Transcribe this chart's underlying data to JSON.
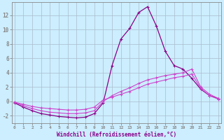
{
  "xlabel": "Windchill (Refroidissement éolien,°C)",
  "bg_color": "#cceeff",
  "line_color1": "#880088",
  "line_color2": "#cc44cc",
  "line_color3": "#cc44cc",
  "grid_color": "#aabbcc",
  "x_ticks": [
    0,
    1,
    2,
    3,
    4,
    5,
    6,
    7,
    8,
    9,
    10,
    11,
    12,
    13,
    14,
    15,
    16,
    17,
    18,
    19,
    20,
    21,
    22,
    23
  ],
  "y_ticks": [
    -2,
    0,
    2,
    4,
    6,
    8,
    10,
    12
  ],
  "ylim": [
    -3.0,
    13.8
  ],
  "xlim": [
    -0.3,
    23.3
  ],
  "series1_x": [
    0,
    1,
    2,
    3,
    4,
    5,
    6,
    7,
    8,
    9,
    10,
    11,
    12,
    13,
    14,
    15,
    16,
    17,
    18,
    19,
    20,
    21,
    22,
    23
  ],
  "series1_y": [
    -0.2,
    -0.8,
    -1.3,
    -1.7,
    -1.9,
    -2.1,
    -2.2,
    -2.3,
    -2.2,
    -1.7,
    -0.2,
    5.0,
    8.7,
    10.2,
    12.4,
    13.2,
    10.5,
    7.0,
    5.0,
    4.5,
    3.2,
    1.7,
    0.8,
    0.4
  ],
  "series2_x": [
    0,
    1,
    2,
    3,
    4,
    5,
    6,
    7,
    8,
    9,
    10,
    11,
    12,
    13,
    14,
    15,
    16,
    17,
    18,
    19,
    20,
    21,
    22,
    23
  ],
  "series2_y": [
    -0.1,
    -0.6,
    -1.0,
    -1.3,
    -1.5,
    -1.6,
    -1.7,
    -1.7,
    -1.6,
    -1.3,
    0.0,
    0.8,
    1.4,
    1.9,
    2.5,
    3.0,
    3.3,
    3.6,
    3.8,
    4.0,
    4.5,
    2.0,
    1.0,
    0.4
  ],
  "series3_x": [
    0,
    1,
    2,
    3,
    4,
    5,
    6,
    7,
    8,
    9,
    10,
    11,
    12,
    13,
    14,
    15,
    16,
    17,
    18,
    19,
    20,
    21,
    22,
    23
  ],
  "series3_y": [
    -0.1,
    -0.4,
    -0.7,
    -0.9,
    -1.0,
    -1.1,
    -1.2,
    -1.2,
    -1.1,
    -0.8,
    0.2,
    0.6,
    1.0,
    1.4,
    1.9,
    2.4,
    2.7,
    3.0,
    3.3,
    3.5,
    3.8,
    1.8,
    0.8,
    0.3
  ]
}
